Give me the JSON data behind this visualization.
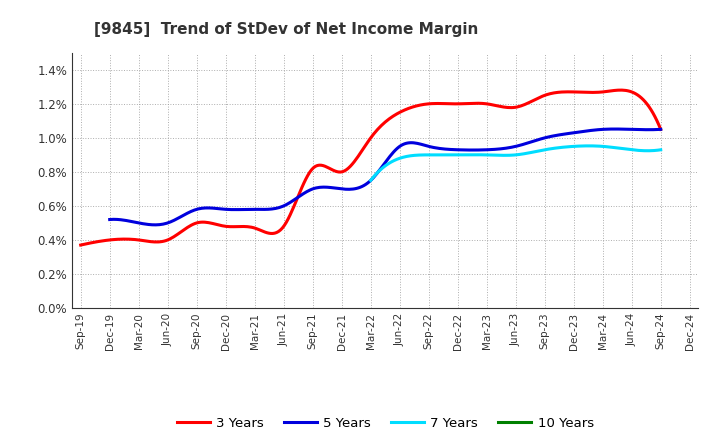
{
  "title": "[9845]  Trend of StDev of Net Income Margin",
  "x_labels": [
    "Sep-19",
    "Dec-19",
    "Mar-20",
    "Jun-20",
    "Sep-20",
    "Dec-20",
    "Mar-21",
    "Jun-21",
    "Sep-21",
    "Dec-21",
    "Mar-22",
    "Jun-22",
    "Sep-22",
    "Dec-22",
    "Mar-23",
    "Jun-23",
    "Sep-23",
    "Dec-23",
    "Mar-24",
    "Jun-24",
    "Sep-24",
    "Dec-24"
  ],
  "series": {
    "3 Years": {
      "color": "#ff0000",
      "values": [
        0.0037,
        0.004,
        0.004,
        0.004,
        0.005,
        0.0048,
        0.0047,
        0.0048,
        0.0082,
        0.008,
        0.01,
        0.0115,
        0.012,
        0.012,
        0.012,
        0.0118,
        0.0125,
        0.0127,
        0.0127,
        0.0127,
        0.0105,
        null
      ]
    },
    "5 Years": {
      "color": "#0000dd",
      "values": [
        null,
        0.0052,
        0.005,
        0.005,
        0.0058,
        0.0058,
        0.0058,
        0.006,
        0.007,
        0.007,
        0.0075,
        0.0095,
        0.0095,
        0.0093,
        0.0093,
        0.0095,
        0.01,
        0.0103,
        0.0105,
        0.0105,
        0.0105,
        null
      ]
    },
    "7 Years": {
      "color": "#00ddff",
      "values": [
        null,
        null,
        null,
        null,
        null,
        null,
        null,
        null,
        null,
        null,
        0.0075,
        0.0088,
        0.009,
        0.009,
        0.009,
        0.009,
        0.0093,
        0.0095,
        0.0095,
        0.0093,
        0.0093,
        null
      ]
    },
    "10 Years": {
      "color": "#008000",
      "values": [
        null,
        null,
        null,
        null,
        null,
        null,
        null,
        null,
        null,
        null,
        null,
        null,
        null,
        null,
        null,
        null,
        null,
        null,
        null,
        null,
        null,
        null
      ]
    }
  },
  "ylim": [
    0.0,
    0.015
  ],
  "yticks": [
    0.0,
    0.002,
    0.004,
    0.006,
    0.008,
    0.01,
    0.012,
    0.014
  ],
  "background_color": "#ffffff",
  "plot_bg_color": "#ffffff",
  "grid_color": "#999999",
  "legend_entries": [
    "3 Years",
    "5 Years",
    "7 Years",
    "10 Years"
  ]
}
